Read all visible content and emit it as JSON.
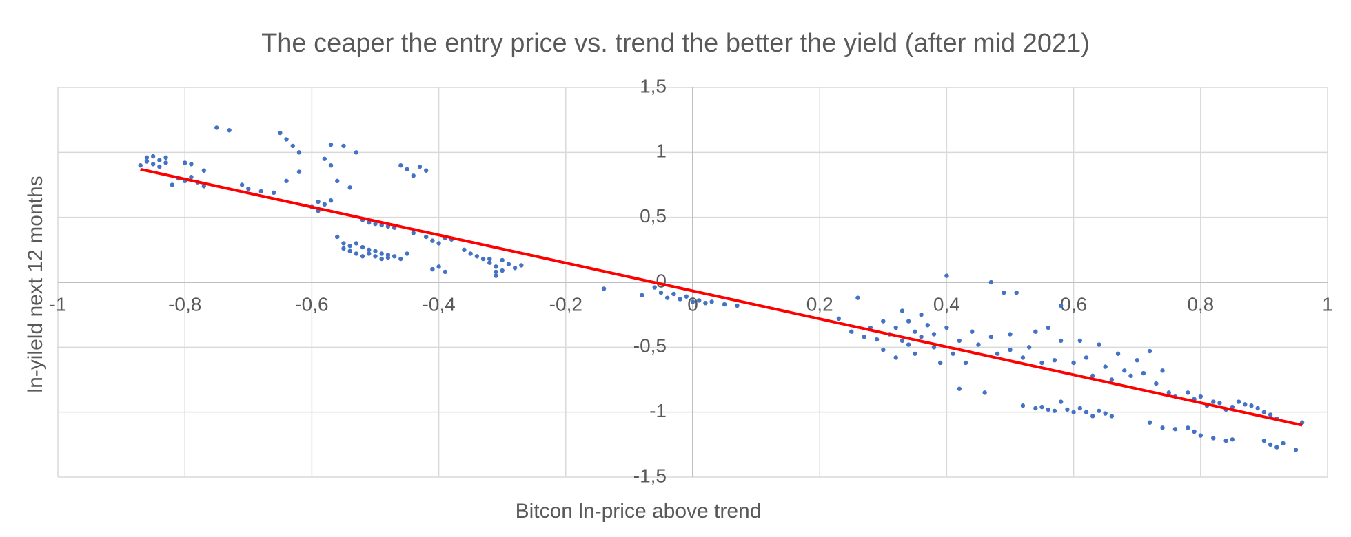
{
  "chart_data": {
    "type": "scatter",
    "title": "The ceaper the entry price vs. trend the better the yield (after mid 2021)",
    "x_label": "Bitcon ln-price above trend",
    "y_label": "ln-yileld  next 12 months",
    "xlim": [
      -1,
      1
    ],
    "ylim": [
      -1.5,
      1.5
    ],
    "xticks": [
      -1,
      {
        "value": -0.8,
        "label": "-0,8"
      },
      {
        "value": -0.6,
        "label": "-0,6"
      },
      {
        "value": -0.4,
        "label": "-0,4"
      },
      {
        "value": -0.2,
        "label": "-0,2"
      },
      0,
      {
        "value": 0.2,
        "label": "0,2"
      },
      {
        "value": 0.4,
        "label": "0,4"
      },
      {
        "value": 0.6,
        "label": "0,6"
      },
      {
        "value": 0.8,
        "label": "0,8"
      },
      1
    ],
    "yticks": [
      {
        "value": 1.5,
        "label": "1,5"
      },
      1,
      {
        "value": 0.5,
        "label": "0,5"
      },
      0,
      {
        "value": -0.5,
        "label": "-0,5"
      },
      -1,
      {
        "value": -1.5,
        "label": "-1,5"
      }
    ],
    "grid": true,
    "series": [
      {
        "color": "#4472c4",
        "x": [
          -0.87,
          -0.86,
          -0.86,
          -0.85,
          -0.85,
          -0.84,
          -0.84,
          -0.83,
          -0.83,
          -0.82,
          -0.81,
          -0.8,
          -0.8,
          -0.79,
          -0.79,
          -0.78,
          -0.77,
          -0.77,
          -0.75,
          -0.73,
          -0.71,
          -0.7,
          -0.68,
          -0.66,
          -0.65,
          -0.64,
          -0.63,
          -0.62,
          -0.64,
          -0.62,
          -0.6,
          -0.59,
          -0.59,
          -0.58,
          -0.57,
          -0.58,
          -0.57,
          -0.56,
          -0.55,
          -0.57,
          -0.53,
          -0.54,
          -0.56,
          -0.55,
          -0.55,
          -0.54,
          -0.54,
          -0.53,
          -0.53,
          -0.52,
          -0.52,
          -0.51,
          -0.51,
          -0.5,
          -0.5,
          -0.49,
          -0.49,
          -0.48,
          -0.48,
          -0.47,
          -0.46,
          -0.45,
          -0.52,
          -0.51,
          -0.5,
          -0.49,
          -0.48,
          -0.47,
          -0.46,
          -0.45,
          -0.44,
          -0.43,
          -0.42,
          -0.44,
          -0.42,
          -0.41,
          -0.4,
          -0.39,
          -0.38,
          -0.41,
          -0.4,
          -0.39,
          -0.36,
          -0.35,
          -0.34,
          -0.33,
          -0.32,
          -0.31,
          -0.31,
          -0.3,
          -0.3,
          -0.29,
          -0.28,
          -0.32,
          -0.31,
          -0.27,
          -0.14,
          -0.08,
          -0.06,
          -0.05,
          -0.04,
          -0.03,
          -0.02,
          -0.01,
          0.0,
          0.01,
          0.02,
          0.03,
          0.05,
          0.07,
          0.23,
          0.25,
          0.26,
          0.27,
          0.28,
          0.29,
          0.3,
          0.3,
          0.31,
          0.32,
          0.32,
          0.33,
          0.33,
          0.34,
          0.34,
          0.35,
          0.35,
          0.36,
          0.36,
          0.37,
          0.38,
          0.38,
          0.39,
          0.4,
          0.4,
          0.41,
          0.42,
          0.42,
          0.43,
          0.44,
          0.45,
          0.46,
          0.47,
          0.47,
          0.48,
          0.49,
          0.5,
          0.5,
          0.51,
          0.52,
          0.53,
          0.54,
          0.55,
          0.56,
          0.57,
          0.58,
          0.52,
          0.54,
          0.55,
          0.56,
          0.57,
          0.58,
          0.59,
          0.6,
          0.61,
          0.62,
          0.63,
          0.64,
          0.65,
          0.66,
          0.58,
          0.6,
          0.61,
          0.62,
          0.63,
          0.64,
          0.65,
          0.66,
          0.67,
          0.68,
          0.69,
          0.7,
          0.71,
          0.72,
          0.73,
          0.74,
          0.75,
          0.76,
          0.78,
          0.79,
          0.8,
          0.81,
          0.82,
          0.83,
          0.84,
          0.85,
          0.86,
          0.87,
          0.88,
          0.89,
          0.9,
          0.91,
          0.92,
          0.96,
          0.72,
          0.74,
          0.76,
          0.78,
          0.79,
          0.8,
          0.82,
          0.84,
          0.85,
          0.9,
          0.91,
          0.92,
          0.93,
          0.95
        ],
        "values": [
          0.9,
          0.93,
          0.96,
          0.91,
          0.97,
          0.94,
          0.89,
          0.92,
          0.96,
          0.75,
          0.8,
          0.78,
          0.92,
          0.81,
          0.91,
          0.77,
          0.74,
          0.86,
          1.19,
          1.17,
          0.75,
          0.72,
          0.7,
          0.69,
          1.15,
          1.1,
          1.05,
          1.0,
          0.78,
          0.85,
          0.58,
          0.62,
          0.55,
          0.6,
          0.63,
          0.95,
          0.9,
          0.78,
          1.05,
          1.06,
          1.0,
          0.73,
          0.35,
          0.3,
          0.26,
          0.28,
          0.24,
          0.3,
          0.22,
          0.27,
          0.2,
          0.25,
          0.22,
          0.24,
          0.2,
          0.22,
          0.18,
          0.21,
          0.19,
          0.2,
          0.18,
          0.22,
          0.48,
          0.46,
          0.45,
          0.44,
          0.43,
          0.42,
          0.9,
          0.87,
          0.82,
          0.89,
          0.86,
          0.38,
          0.35,
          0.32,
          0.3,
          0.34,
          0.33,
          0.1,
          0.12,
          0.08,
          0.25,
          0.22,
          0.2,
          0.18,
          0.15,
          0.12,
          0.05,
          0.17,
          0.09,
          0.14,
          0.11,
          0.18,
          0.08,
          0.13,
          -0.05,
          -0.1,
          -0.04,
          -0.08,
          -0.12,
          -0.09,
          -0.13,
          -0.11,
          -0.15,
          -0.14,
          -0.16,
          -0.15,
          -0.17,
          -0.18,
          -0.28,
          -0.38,
          -0.12,
          -0.42,
          -0.35,
          -0.44,
          -0.3,
          -0.52,
          -0.4,
          -0.58,
          -0.35,
          -0.45,
          -0.22,
          -0.48,
          -0.3,
          -0.38,
          -0.55,
          -0.25,
          -0.42,
          -0.33,
          -0.5,
          -0.4,
          -0.62,
          -0.35,
          0.05,
          -0.55,
          -0.45,
          -0.82,
          -0.62,
          -0.38,
          -0.48,
          -0.85,
          0.0,
          -0.42,
          -0.55,
          -0.08,
          -0.4,
          -0.52,
          -0.08,
          -0.58,
          -0.5,
          -0.38,
          -0.62,
          -0.35,
          -0.6,
          -0.45,
          -0.95,
          -0.97,
          -0.96,
          -0.98,
          -0.99,
          -0.92,
          -0.98,
          -1.0,
          -0.97,
          -1.0,
          -1.03,
          -0.99,
          -1.01,
          -1.03,
          -0.18,
          -0.62,
          -0.45,
          -0.58,
          -0.72,
          -0.48,
          -0.65,
          -0.75,
          -0.55,
          -0.68,
          -0.72,
          -0.6,
          -0.7,
          -0.53,
          -0.78,
          -0.68,
          -0.85,
          -0.88,
          -0.85,
          -0.9,
          -0.88,
          -0.95,
          -0.92,
          -0.93,
          -0.98,
          -0.96,
          -0.92,
          -0.94,
          -0.95,
          -0.97,
          -1.0,
          -1.02,
          -1.05,
          -1.08,
          -1.08,
          -1.12,
          -1.13,
          -1.12,
          -1.15,
          -1.18,
          -1.2,
          -1.22,
          -1.21,
          -1.22,
          -1.25,
          -1.27,
          -1.24,
          -1.29
        ]
      }
    ],
    "trendline": {
      "color": "#ff0000",
      "x": [
        -0.87,
        0.96
      ],
      "values": [
        0.87,
        -1.1
      ]
    }
  }
}
